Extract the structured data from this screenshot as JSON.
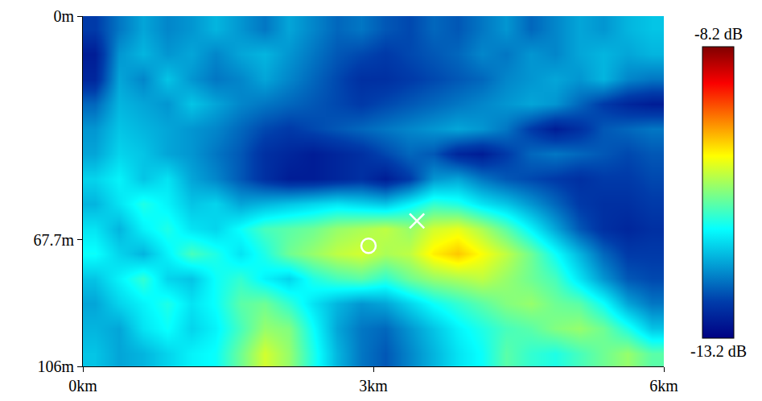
{
  "chart_data": {
    "type": "heatmap",
    "xlim": [
      0,
      6
    ],
    "xticks": [
      {
        "value": 0,
        "label": "0km"
      },
      {
        "value": 3,
        "label": "3km"
      },
      {
        "value": 6,
        "label": "6km"
      }
    ],
    "ylim": [
      0,
      106
    ],
    "yticks": [
      {
        "value": 0,
        "label": "0m"
      },
      {
        "value": 67.7,
        "label": "67.7m"
      },
      {
        "value": 106,
        "label": "106m"
      }
    ],
    "x": [
      0.125,
      0.375,
      0.625,
      0.875,
      1.125,
      1.375,
      1.625,
      1.875,
      2.125,
      2.375,
      2.625,
      2.875,
      3.125,
      3.375,
      3.625,
      3.875,
      4.125,
      4.375,
      4.625,
      4.875,
      5.125,
      5.375,
      5.625,
      5.875
    ],
    "y": [
      3.8,
      11.4,
      18.9,
      26.5,
      34.1,
      41.6,
      49.2,
      56.8,
      64.4,
      71.9,
      79.5,
      87.1,
      94.6,
      102.2
    ],
    "z": [
      [
        -12.6,
        -12.2,
        -11.9,
        -12.1,
        -12.0,
        -11.8,
        -12.0,
        -12.2,
        -11.9,
        -12.1,
        -12.3,
        -12.2,
        -12.4,
        -12.5,
        -12.3,
        -12.4,
        -12.2,
        -12.0,
        -12.3,
        -12.1,
        -11.9,
        -12.0,
        -11.8,
        -11.7
      ],
      [
        -12.9,
        -12.0,
        -11.8,
        -12.0,
        -11.9,
        -12.1,
        -11.9,
        -11.8,
        -12.0,
        -12.2,
        -12.4,
        -12.5,
        -12.6,
        -12.5,
        -12.4,
        -12.3,
        -12.1,
        -12.2,
        -12.0,
        -12.1,
        -11.9,
        -11.8,
        -11.9,
        -11.8
      ],
      [
        -12.8,
        -11.9,
        -12.1,
        -11.7,
        -12.0,
        -12.2,
        -12.1,
        -11.9,
        -12.1,
        -12.3,
        -12.5,
        -12.7,
        -12.7,
        -12.6,
        -12.5,
        -12.4,
        -12.3,
        -12.1,
        -12.0,
        -11.9,
        -12.0,
        -11.8,
        -12.1,
        -12.2
      ],
      [
        -12.3,
        -11.8,
        -11.9,
        -12.0,
        -11.7,
        -11.9,
        -12.1,
        -12.2,
        -12.3,
        -12.4,
        -12.5,
        -12.6,
        -12.5,
        -12.4,
        -12.3,
        -12.2,
        -12.1,
        -12.0,
        -11.9,
        -12.0,
        -12.3,
        -12.6,
        -12.8,
        -12.9
      ],
      [
        -12.0,
        -11.7,
        -11.8,
        -11.9,
        -12.0,
        -12.1,
        -12.3,
        -12.5,
        -12.6,
        -12.5,
        -12.4,
        -12.3,
        -12.2,
        -12.1,
        -12.0,
        -11.9,
        -12.0,
        -12.2,
        -12.6,
        -12.9,
        -12.7,
        -12.4,
        -12.3,
        -12.2
      ],
      [
        -11.9,
        -11.6,
        -11.7,
        -11.9,
        -12.0,
        -12.2,
        -12.4,
        -12.7,
        -12.8,
        -12.9,
        -12.8,
        -12.7,
        -12.5,
        -12.3,
        -12.4,
        -12.8,
        -12.9,
        -12.6,
        -12.3,
        -12.2,
        -12.3,
        -12.4,
        -12.5,
        -12.4
      ],
      [
        -11.6,
        -11.4,
        -11.7,
        -11.5,
        -11.9,
        -12.1,
        -12.4,
        -12.7,
        -12.9,
        -12.9,
        -12.8,
        -12.7,
        -12.9,
        -12.6,
        -12.0,
        -11.9,
        -12.2,
        -12.4,
        -12.5,
        -12.6,
        -12.7,
        -12.6,
        -12.6,
        -12.5
      ],
      [
        -11.8,
        -11.5,
        -11.2,
        -11.4,
        -11.7,
        -11.6,
        -11.9,
        -11.8,
        -11.7,
        -11.6,
        -11.5,
        -11.6,
        -11.7,
        -11.4,
        -11.1,
        -11.2,
        -11.5,
        -11.7,
        -12.0,
        -12.3,
        -12.6,
        -12.7,
        -12.7,
        -12.6
      ],
      [
        -11.5,
        -11.8,
        -11.4,
        -11.2,
        -11.5,
        -11.6,
        -11.3,
        -11.0,
        -10.9,
        -10.8,
        -10.6,
        -10.5,
        -10.4,
        -10.6,
        -10.3,
        -10.2,
        -10.5,
        -10.9,
        -11.4,
        -11.9,
        -12.4,
        -12.7,
        -12.8,
        -12.7
      ],
      [
        -11.3,
        -11.6,
        -11.8,
        -11.4,
        -11.0,
        -11.2,
        -11.5,
        -11.2,
        -10.8,
        -10.6,
        -10.4,
        -10.3,
        -10.5,
        -10.4,
        -10.0,
        -9.8,
        -10.1,
        -10.4,
        -10.8,
        -11.3,
        -11.8,
        -12.3,
        -12.6,
        -12.6
      ],
      [
        -11.7,
        -11.4,
        -11.1,
        -11.6,
        -11.7,
        -11.3,
        -11.1,
        -11.4,
        -11.6,
        -11.2,
        -11.0,
        -10.9,
        -11.1,
        -10.8,
        -10.6,
        -10.5,
        -10.4,
        -10.6,
        -10.8,
        -11.0,
        -11.5,
        -12.0,
        -12.4,
        -12.5
      ],
      [
        -11.9,
        -11.6,
        -11.4,
        -11.2,
        -11.5,
        -11.3,
        -10.9,
        -10.8,
        -11.1,
        -11.5,
        -11.8,
        -12.0,
        -11.9,
        -11.6,
        -11.3,
        -11.1,
        -10.9,
        -10.7,
        -10.6,
        -10.8,
        -10.9,
        -11.3,
        -11.9,
        -12.2
      ],
      [
        -11.8,
        -11.9,
        -11.5,
        -11.3,
        -11.6,
        -11.4,
        -11.0,
        -10.6,
        -10.7,
        -11.3,
        -11.9,
        -12.2,
        -12.3,
        -12.0,
        -11.7,
        -11.4,
        -11.2,
        -11.0,
        -10.9,
        -10.7,
        -10.6,
        -10.8,
        -11.2,
        -11.7
      ],
      [
        -11.7,
        -11.9,
        -11.8,
        -11.6,
        -11.4,
        -11.3,
        -10.8,
        -10.3,
        -10.6,
        -11.2,
        -11.8,
        -12.2,
        -12.4,
        -12.1,
        -11.8,
        -11.5,
        -11.3,
        -10.9,
        -11.1,
        -11.2,
        -11.0,
        -10.8,
        -10.6,
        -10.9
      ]
    ],
    "colorbar": {
      "range": [
        -13.2,
        -8.2
      ],
      "ticks": [
        {
          "value": -13.2,
          "label": "-13.2 dB"
        },
        {
          "value": -8.2,
          "label": "-8.2 dB"
        }
      ]
    },
    "series": [
      {
        "type": "scatter",
        "marker": "circle-open",
        "color": "#ffffff",
        "x": [
          2.95
        ],
        "y": [
          69.5
        ]
      },
      {
        "type": "scatter",
        "marker": "x-thin",
        "color": "#ffffff",
        "x": [
          3.45
        ],
        "y": [
          62
        ]
      }
    ]
  }
}
